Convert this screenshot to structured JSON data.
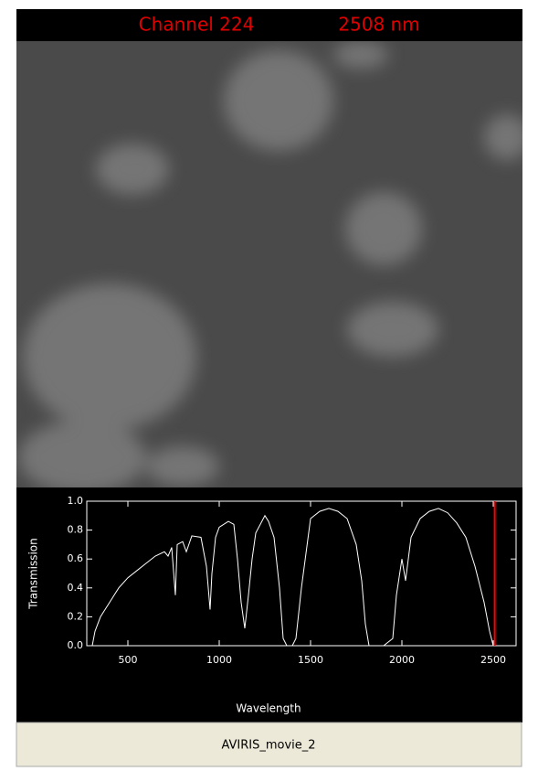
{
  "header": {
    "channel": "Channel 224",
    "wavelength": "2508 nm"
  },
  "chart_data": {
    "type": "line",
    "xlabel": "Wavelength",
    "ylabel": "Transmission",
    "x": [
      305,
      320,
      350,
      400,
      450,
      500,
      550,
      600,
      650,
      700,
      720,
      740,
      760,
      770,
      800,
      820,
      850,
      900,
      930,
      950,
      960,
      980,
      1000,
      1050,
      1080,
      1100,
      1120,
      1140,
      1160,
      1180,
      1200,
      1250,
      1270,
      1300,
      1330,
      1350,
      1370,
      1400,
      1420,
      1450,
      1500,
      1550,
      1600,
      1650,
      1700,
      1750,
      1780,
      1800,
      1820,
      1900,
      1950,
      1970,
      2000,
      2020,
      2050,
      2100,
      2150,
      2200,
      2250,
      2300,
      2350,
      2400,
      2450,
      2480,
      2500
    ],
    "series": [
      {
        "name": "Transmission",
        "color": "#ffffff",
        "values": [
          0.0,
          0.1,
          0.2,
          0.3,
          0.4,
          0.47,
          0.52,
          0.57,
          0.62,
          0.65,
          0.62,
          0.68,
          0.35,
          0.7,
          0.72,
          0.65,
          0.76,
          0.75,
          0.55,
          0.25,
          0.5,
          0.75,
          0.82,
          0.86,
          0.84,
          0.6,
          0.3,
          0.12,
          0.35,
          0.6,
          0.78,
          0.9,
          0.86,
          0.75,
          0.4,
          0.05,
          0.0,
          0.0,
          0.05,
          0.4,
          0.88,
          0.93,
          0.95,
          0.93,
          0.88,
          0.7,
          0.45,
          0.15,
          0.0,
          0.0,
          0.05,
          0.35,
          0.6,
          0.45,
          0.75,
          0.88,
          0.93,
          0.95,
          0.92,
          0.85,
          0.75,
          0.55,
          0.3,
          0.1,
          0.0
        ]
      }
    ],
    "marker_x": 2508,
    "marker_color": "#ff0000",
    "xlim": [
      275,
      2625
    ],
    "ylim": [
      0,
      1
    ],
    "xticks": [
      500,
      1000,
      1500,
      2000,
      2500
    ],
    "yticks": [
      {
        "value": 0,
        "label": "0.0"
      },
      0.2,
      0.4,
      0.6,
      0.8,
      {
        "value": 1,
        "label": "1.0"
      }
    ]
  },
  "caption": "AVIRIS_movie_2"
}
